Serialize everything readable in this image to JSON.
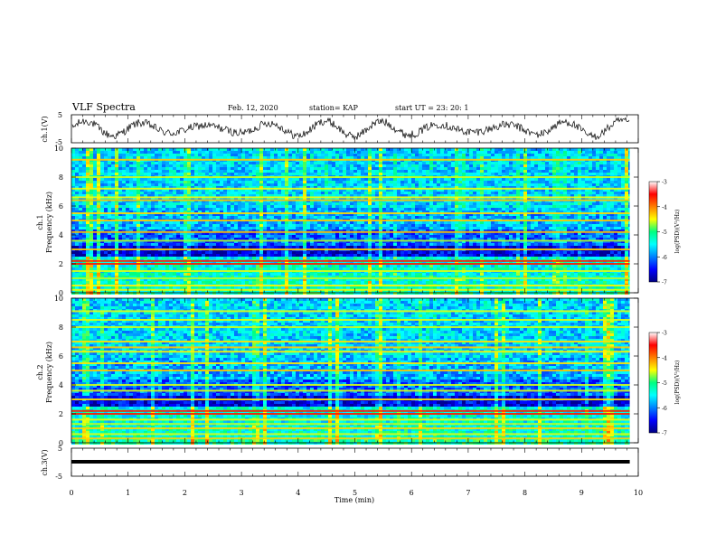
{
  "header": {
    "title": "VLF Spectra",
    "date": "Feb. 12, 2020",
    "station": "station= KAP",
    "start": "start  UT =   23: 20: 1"
  },
  "chart_data": [
    {
      "type": "line",
      "name": "ch1-waveform",
      "ylabel": "ch.1(V)",
      "ylim": [
        -5,
        5
      ],
      "yticks": [
        "5",
        "-5"
      ],
      "xlim": [
        0,
        10
      ]
    },
    {
      "type": "heatmap",
      "name": "ch1-spectrogram",
      "ylabel_line1": "ch.1",
      "ylabel_line2": "Frequency  (kHz)",
      "ylim": [
        0,
        10
      ],
      "yticks": [
        "0",
        "2",
        "4",
        "6",
        "8",
        "10"
      ],
      "xlim": [
        0,
        9.85
      ],
      "bands_khz": [
        0.2,
        0.5,
        1.0,
        1.5,
        2.0,
        2.2,
        3.0,
        3.6,
        4.2,
        5.0,
        5.5,
        6.4,
        6.6,
        7.2,
        8.0,
        9.2
      ],
      "colorbar": {
        "label": "log(PSD)(V²/Hz)",
        "range": [
          -7,
          -3
        ],
        "ticks": [
          "-3",
          "-4",
          "-5",
          "-6",
          "-7"
        ]
      }
    },
    {
      "type": "heatmap",
      "name": "ch2-spectrogram",
      "ylabel_line1": "ch.2",
      "ylabel_line2": "Frequency  (kHz)",
      "ylim": [
        0,
        10
      ],
      "yticks": [
        "0",
        "2",
        "4",
        "6",
        "8",
        "10"
      ],
      "xlim": [
        0,
        9.85
      ],
      "bands_khz": [
        0.3,
        0.6,
        1.0,
        1.3,
        1.6,
        2.0,
        2.2,
        3.0,
        3.6,
        4.0,
        5.0,
        5.5,
        6.3,
        6.6,
        7.0,
        8.0,
        8.5,
        9.1
      ],
      "colorbar": {
        "label": "log(PSD)(V²/Hz)",
        "range": [
          -7,
          -3
        ],
        "ticks": [
          "-3",
          "-4",
          "-5",
          "-6",
          "-7"
        ]
      }
    },
    {
      "type": "line",
      "name": "ch3-waveform",
      "ylabel": "ch.3(V)",
      "ylim": [
        -5,
        5
      ],
      "yticks": [
        "5",
        "-5"
      ],
      "x": [
        0,
        9.85
      ],
      "y": [
        0,
        0
      ]
    }
  ],
  "xaxis": {
    "label": "Time  (min)",
    "range": [
      0,
      10
    ],
    "ticks": [
      "0",
      "1",
      "2",
      "3",
      "4",
      "5",
      "6",
      "7",
      "8",
      "9",
      "10"
    ]
  }
}
